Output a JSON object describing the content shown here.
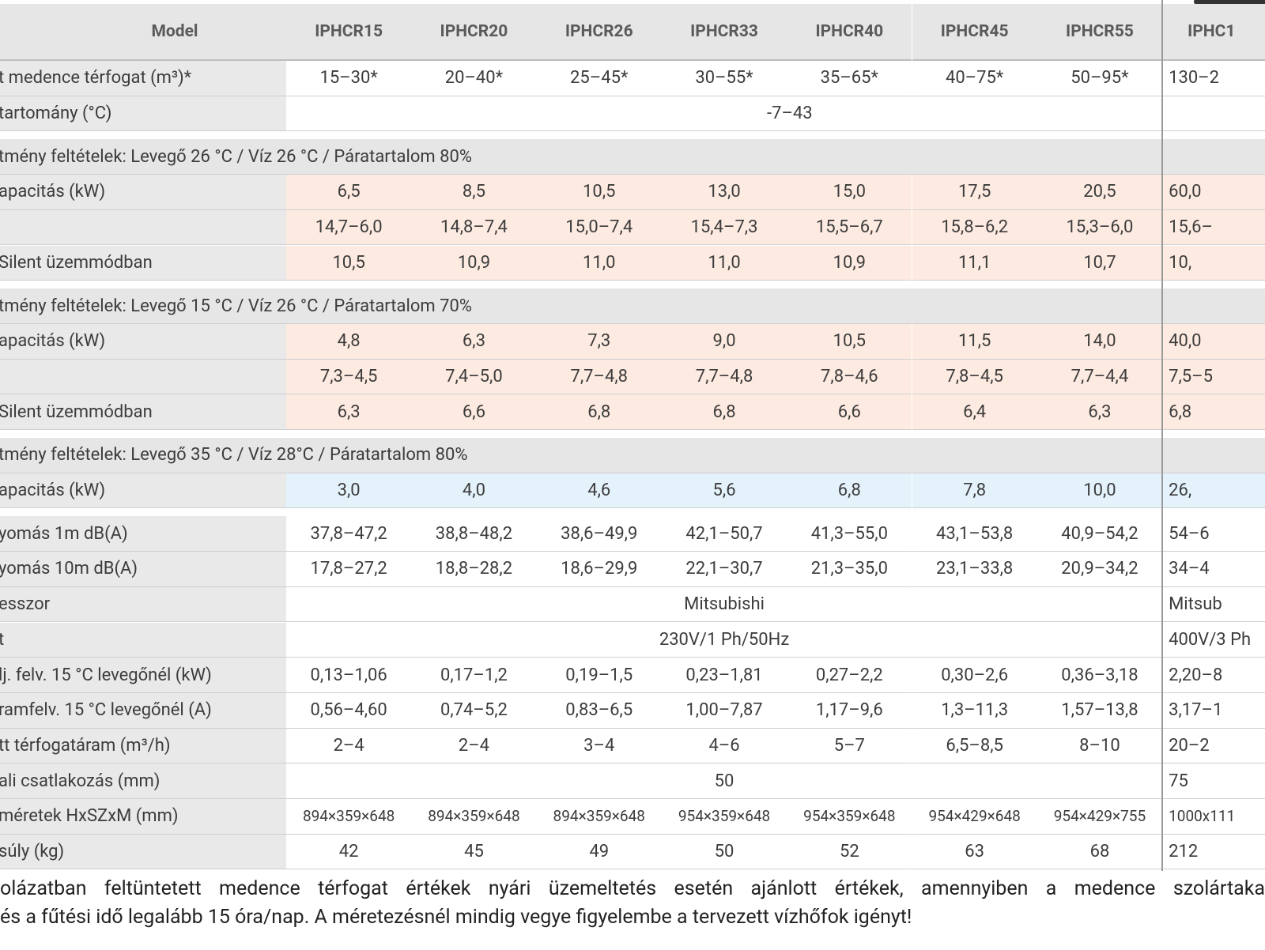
{
  "table": {
    "header": [
      "Model",
      "IPHCR15",
      "IPHCR20",
      "IPHCR26",
      "IPHCR33",
      "IPHCR40",
      "IPHCR45",
      "IPHCR55",
      "IPHC1"
    ],
    "rows": [
      {
        "label": "t medence térfogat (m³)*",
        "cells": [
          "15–30*",
          "20–40*",
          "25–45*",
          "30–55*",
          "35–65*",
          "40–75*",
          "50–95*",
          "130–2"
        ]
      },
      {
        "label": "tartomány (°C)",
        "cells": [
          "-7–43"
        ]
      },
      {
        "section": "tmény feltételek: Levegő 26 °C / Víz 26 °C / Páratartalom 80%"
      },
      {
        "label": "apacitás (kW)",
        "cells": [
          "6,5",
          "8,5",
          "10,5",
          "13,0",
          "15,0",
          "17,5",
          "20,5",
          "60,0"
        ]
      },
      {
        "cells": [
          "14,7–6,0",
          "14,8–7,4",
          "15,0–7,4",
          "15,4–7,3",
          "15,5–6,7",
          "15,8–6,2",
          "15,3–6,0",
          "15,6–"
        ]
      },
      {
        "label": "Silent üzemmódban",
        "cells": [
          "10,5",
          "10,9",
          "11,0",
          "11,0",
          "10,9",
          "11,1",
          "10,7",
          "10,"
        ]
      },
      {
        "section": "tmény feltételek: Levegő 15 °C / Víz 26 °C / Páratartalom 70%"
      },
      {
        "label": "apacitás (kW)",
        "cells": [
          "4,8",
          "6,3",
          "7,3",
          "9,0",
          "10,5",
          "11,5",
          "14,0",
          "40,0"
        ]
      },
      {
        "cells": [
          "7,3–4,5",
          "7,4–5,0",
          "7,7–4,8",
          "7,7–4,8",
          "7,8–4,6",
          "7,8–4,5",
          "7,7–4,4",
          "7,5–5"
        ]
      },
      {
        "label": "Silent üzemmódban",
        "cells": [
          "6,3",
          "6,6",
          "6,8",
          "6,8",
          "6,6",
          "6,4",
          "6,3",
          "6,8"
        ]
      },
      {
        "section": "tmény feltételek: Levegő 35 °C / Víz 28°C / Páratartalom 80%"
      },
      {
        "label": "apacitás (kW)",
        "cells": [
          "3,0",
          "4,0",
          "4,6",
          "5,6",
          "6,8",
          "7,8",
          "10,0",
          "26,"
        ]
      },
      {
        "label": "yomás 1m dB(A)",
        "cells": [
          "37,8–47,2",
          "38,8–48,2",
          "38,6–49,9",
          "42,1–50,7",
          "41,3–55,0",
          "43,1–53,8",
          "40,9–54,2",
          "54–6"
        ]
      },
      {
        "label": "yomás 10m dB(A)",
        "cells": [
          "17,8–27,2",
          "18,8–28,2",
          "18,6–29,9",
          "22,1–30,7",
          "21,3–35,0",
          "23,1–33,8",
          "20,9–34,2",
          "34–4"
        ]
      },
      {
        "label": "esszor",
        "cells": [
          "Mitsubishi",
          "Mitsub"
        ]
      },
      {
        "label": "t",
        "cells": [
          "230V/1 Ph/50Hz",
          "400V/3 Ph"
        ]
      },
      {
        "label": "lj. felv. 15 °C levegőnél (kW)",
        "cells": [
          "0,13–1,06",
          "0,17–1,2",
          "0,19–1,5",
          "0,23–1,81",
          "0,27–2,2",
          "0,30–2,6",
          "0,36–3,18",
          "2,20–8"
        ]
      },
      {
        "label": "ramfelv. 15 °C levegőnél (A)",
        "cells": [
          "0,56–4,60",
          "0,74–5,2",
          "0,83–6,5",
          "1,00–7,87",
          "1,17–9,6",
          "1,3–11,3",
          "1,57–13,8",
          "3,17–1"
        ]
      },
      {
        "label": "tt térfogatáram (m³/h)",
        "cells": [
          "2–4",
          "2–4",
          "3–4",
          "4–6",
          "5–7",
          "6,5–8,5",
          "8–10",
          "20–2"
        ]
      },
      {
        "label": "ali csatlakozás (mm)",
        "cells": [
          "50",
          "75"
        ]
      },
      {
        "label": "méretek HxSZxM (mm)",
        "cells": [
          "894×359×648",
          "894×359×648",
          "894×359×648",
          "954×359×648",
          "954×359×648",
          "954×429×648",
          "954×429×755",
          "1000x111"
        ]
      },
      {
        "label": "súly (kg)",
        "cells": [
          "42",
          "45",
          "49",
          "50",
          "52",
          "63",
          "68",
          "212"
        ]
      }
    ]
  },
  "footnote": [
    "olázatban feltüntetett medence térfogat értékek nyári üzemeltetés esetén ajánlott értékek, amennyiben a medence szolártaka",
    "és a fűtési idő legalább 15 óra/nap. A méretezésnél mindig vegye figyelembe a tervezett vízhőfok igényt!"
  ]
}
